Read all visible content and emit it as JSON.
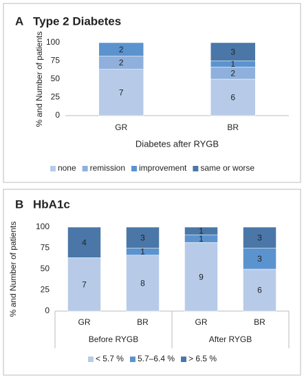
{
  "chart_data": [
    {
      "type": "bar",
      "stacked": true,
      "panel": "A",
      "title": "Type 2 Diabetes",
      "y_label": "% and Number of patients",
      "x_label": "Diabetes after RYGB",
      "categories": [
        "GR",
        "BR"
      ],
      "ylim": [
        0,
        100
      ],
      "yticks": [
        0,
        25,
        50,
        75,
        100
      ],
      "series": [
        {
          "name": "none",
          "color": "#b7cbe8",
          "values": [
            63.6,
            50
          ],
          "counts": [
            7,
            6
          ]
        },
        {
          "name": "remission",
          "color": "#8fb0dc",
          "values": [
            18.2,
            16.7
          ],
          "counts": [
            2,
            2
          ]
        },
        {
          "name": "improvement",
          "color": "#5b93cf",
          "values": [
            18.2,
            8.3
          ],
          "counts": [
            2,
            1
          ]
        },
        {
          "name": "same or worse",
          "color": "#4a77a8",
          "values": [
            0,
            25
          ],
          "counts": [
            null,
            3
          ]
        }
      ]
    },
    {
      "type": "bar",
      "stacked": true,
      "panel": "B",
      "title": "HbA1c",
      "y_label": "% and Number of patients",
      "categories": [
        "GR",
        "BR",
        "GR",
        "BR"
      ],
      "groups": [
        "Before RYGB",
        "After RYGB"
      ],
      "ylim": [
        0,
        100
      ],
      "yticks": [
        0,
        25,
        50,
        75,
        100
      ],
      "series": [
        {
          "name": "< 5.7 %",
          "color": "#b7cbe8",
          "values": [
            63.6,
            66.7,
            81.8,
            50
          ],
          "counts": [
            7,
            8,
            9,
            6
          ]
        },
        {
          "name": "5.7–6.4 %",
          "color": "#5b93cf",
          "values": [
            0,
            8.3,
            9.1,
            25
          ],
          "counts": [
            null,
            1,
            1,
            3
          ]
        },
        {
          "name": "> 6.5 %",
          "color": "#4a77a8",
          "values": [
            36.4,
            25,
            9.1,
            25
          ],
          "counts": [
            4,
            3,
            1,
            3
          ]
        }
      ]
    }
  ]
}
